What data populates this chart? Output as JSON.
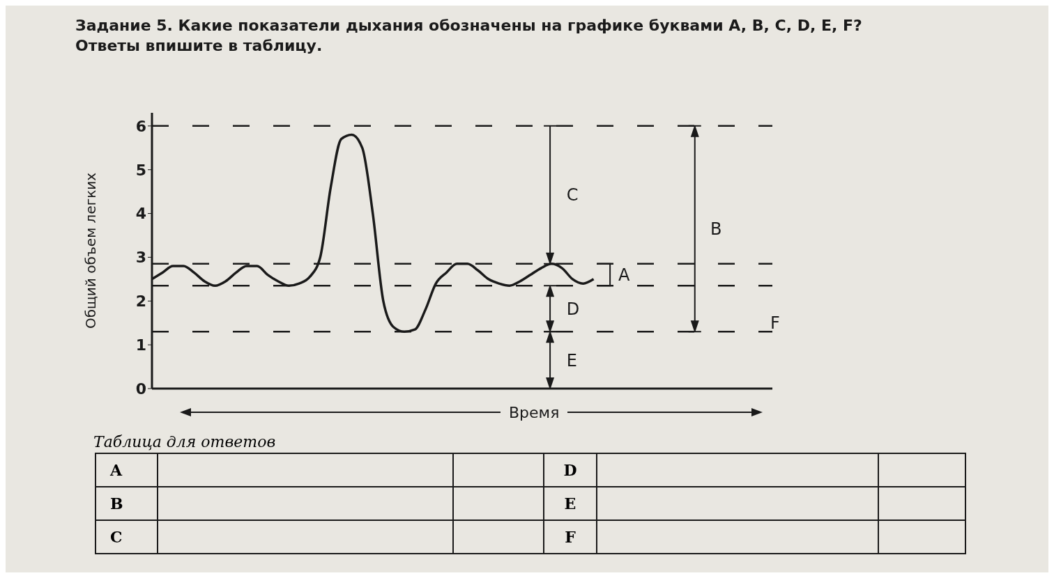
{
  "chart_data": {
    "type": "line",
    "title": "Задание 5. Какие показатели дыхания обозначены на графике буквами A, B, C, D, E, F?",
    "subtitle": "Ответы впишите в таблицу.",
    "xlabel": "Время",
    "ylabel": "Общий объем легких",
    "categories": [
      null,
      null,
      null,
      null,
      null,
      null,
      null,
      null,
      null,
      null,
      null,
      null,
      null,
      null,
      null,
      null,
      null,
      null,
      null,
      null,
      null,
      null,
      null,
      null,
      null,
      null,
      null,
      null,
      null,
      null,
      null,
      null,
      null,
      null,
      null,
      null,
      null,
      null,
      null,
      null,
      null,
      null,
      null,
      null,
      null,
      null,
      null,
      null,
      null,
      null,
      null,
      null,
      null,
      null,
      null,
      null,
      null,
      null,
      null,
      null
    ],
    "series": [
      {
        "color": "#1a1a1a",
        "values": [
          2.5,
          2.65,
          2.8,
          2.8,
          2.65,
          2.45,
          2.35,
          2.45,
          2.65,
          2.8,
          2.8,
          2.6,
          2.45,
          2.35,
          2.4,
          2.55,
          3.0,
          4.6,
          5.7,
          5.8,
          5.5,
          4.0,
          2.0,
          1.4,
          1.3,
          1.35,
          1.8,
          2.4,
          2.65,
          2.85,
          2.85,
          2.7,
          2.5,
          2.4,
          2.35,
          2.45,
          2.6,
          2.75,
          2.85,
          2.75,
          2.5,
          2.4,
          2.5,
          null,
          null,
          null,
          null,
          null,
          null,
          null,
          null,
          null,
          null,
          null,
          null,
          null,
          null,
          null,
          null,
          null
        ]
      }
    ],
    "ylim": [
      0,
      6.3
    ],
    "yticks": [
      0,
      1,
      2,
      3,
      4,
      5,
      6
    ],
    "tick_labels": "y",
    "marker": "none",
    "line_style": "solid",
    "ref_lines": [
      {
        "axis": "y",
        "value": 6,
        "color": "#1a1a1a",
        "line_style": "dashed"
      },
      {
        "axis": "y",
        "value": 2.85,
        "color": "#1a1a1a",
        "line_style": "dashed"
      },
      {
        "axis": "y",
        "value": 2.35,
        "color": "#1a1a1a",
        "line_style": "dashed"
      },
      {
        "axis": "y",
        "value": 1.3,
        "color": "#1a1a1a",
        "line_style": "dashed"
      }
    ],
    "annotations": [
      "A",
      "B",
      "C",
      "D",
      "E",
      "F",
      "Таблица для ответов",
      "A",
      "B",
      "C",
      "D",
      "E",
      "F"
    ]
  }
}
